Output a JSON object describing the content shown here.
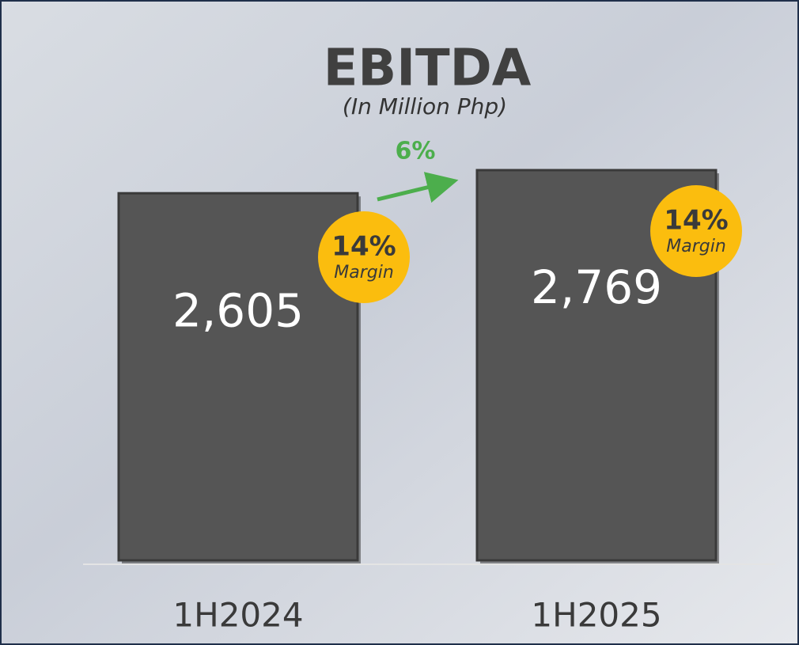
{
  "chart_data": {
    "type": "bar",
    "title": "EBITDA",
    "subtitle": "(In Million Php)",
    "categories": [
      "1H2024",
      "1H2025"
    ],
    "values": [
      2605,
      2769
    ],
    "value_labels": [
      "2,605",
      "2,769"
    ],
    "color": "#555555",
    "annotations": {
      "growth": "6%",
      "margins": [
        "14%",
        "14%"
      ],
      "margin_caption": "Margin"
    }
  }
}
